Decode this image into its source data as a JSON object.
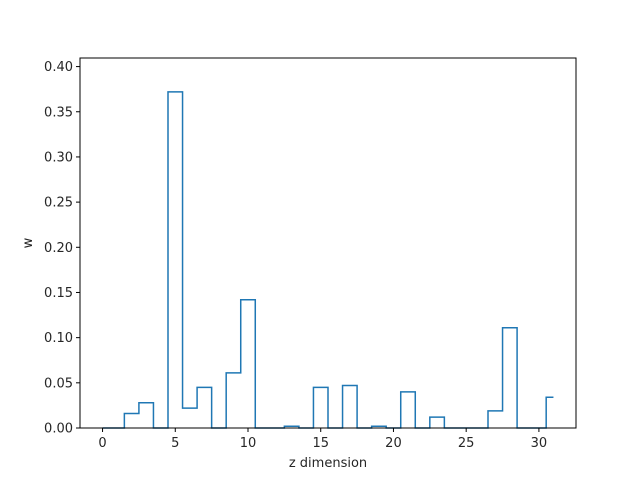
{
  "chart_data": {
    "type": "step",
    "title": "",
    "xlabel": "z dimension",
    "ylabel": "w",
    "xlim": [
      -1.55,
      32.55
    ],
    "ylim": [
      0,
      0.4095
    ],
    "xticks": [
      0,
      5,
      10,
      15,
      20,
      25,
      30
    ],
    "xtick_labels": [
      "0",
      "5",
      "10",
      "15",
      "20",
      "25",
      "30"
    ],
    "yticks": [
      0.0,
      0.05,
      0.1,
      0.15,
      0.2,
      0.25,
      0.3,
      0.35,
      0.4
    ],
    "ytick_labels": [
      "0.00",
      "0.05",
      "0.10",
      "0.15",
      "0.20",
      "0.25",
      "0.30",
      "0.35",
      "0.40"
    ],
    "grid": false,
    "line_color": "#1f77b4",
    "x": [
      0,
      1,
      2,
      3,
      4,
      5,
      6,
      7,
      8,
      9,
      10,
      11,
      12,
      13,
      14,
      15,
      16,
      17,
      18,
      19,
      20,
      21,
      22,
      23,
      24,
      25,
      26,
      27,
      28,
      29,
      30,
      31
    ],
    "values": [
      0.0,
      0.0,
      0.016,
      0.028,
      0.0,
      0.372,
      0.022,
      0.045,
      0.0,
      0.061,
      0.142,
      0.0,
      0.0,
      0.002,
      0.0,
      0.045,
      0.0,
      0.047,
      0.0,
      0.002,
      0.0,
      0.04,
      0.0,
      0.012,
      0.0,
      0.0,
      0.0,
      0.019,
      0.111,
      0.0,
      0.0,
      0.034
    ]
  }
}
